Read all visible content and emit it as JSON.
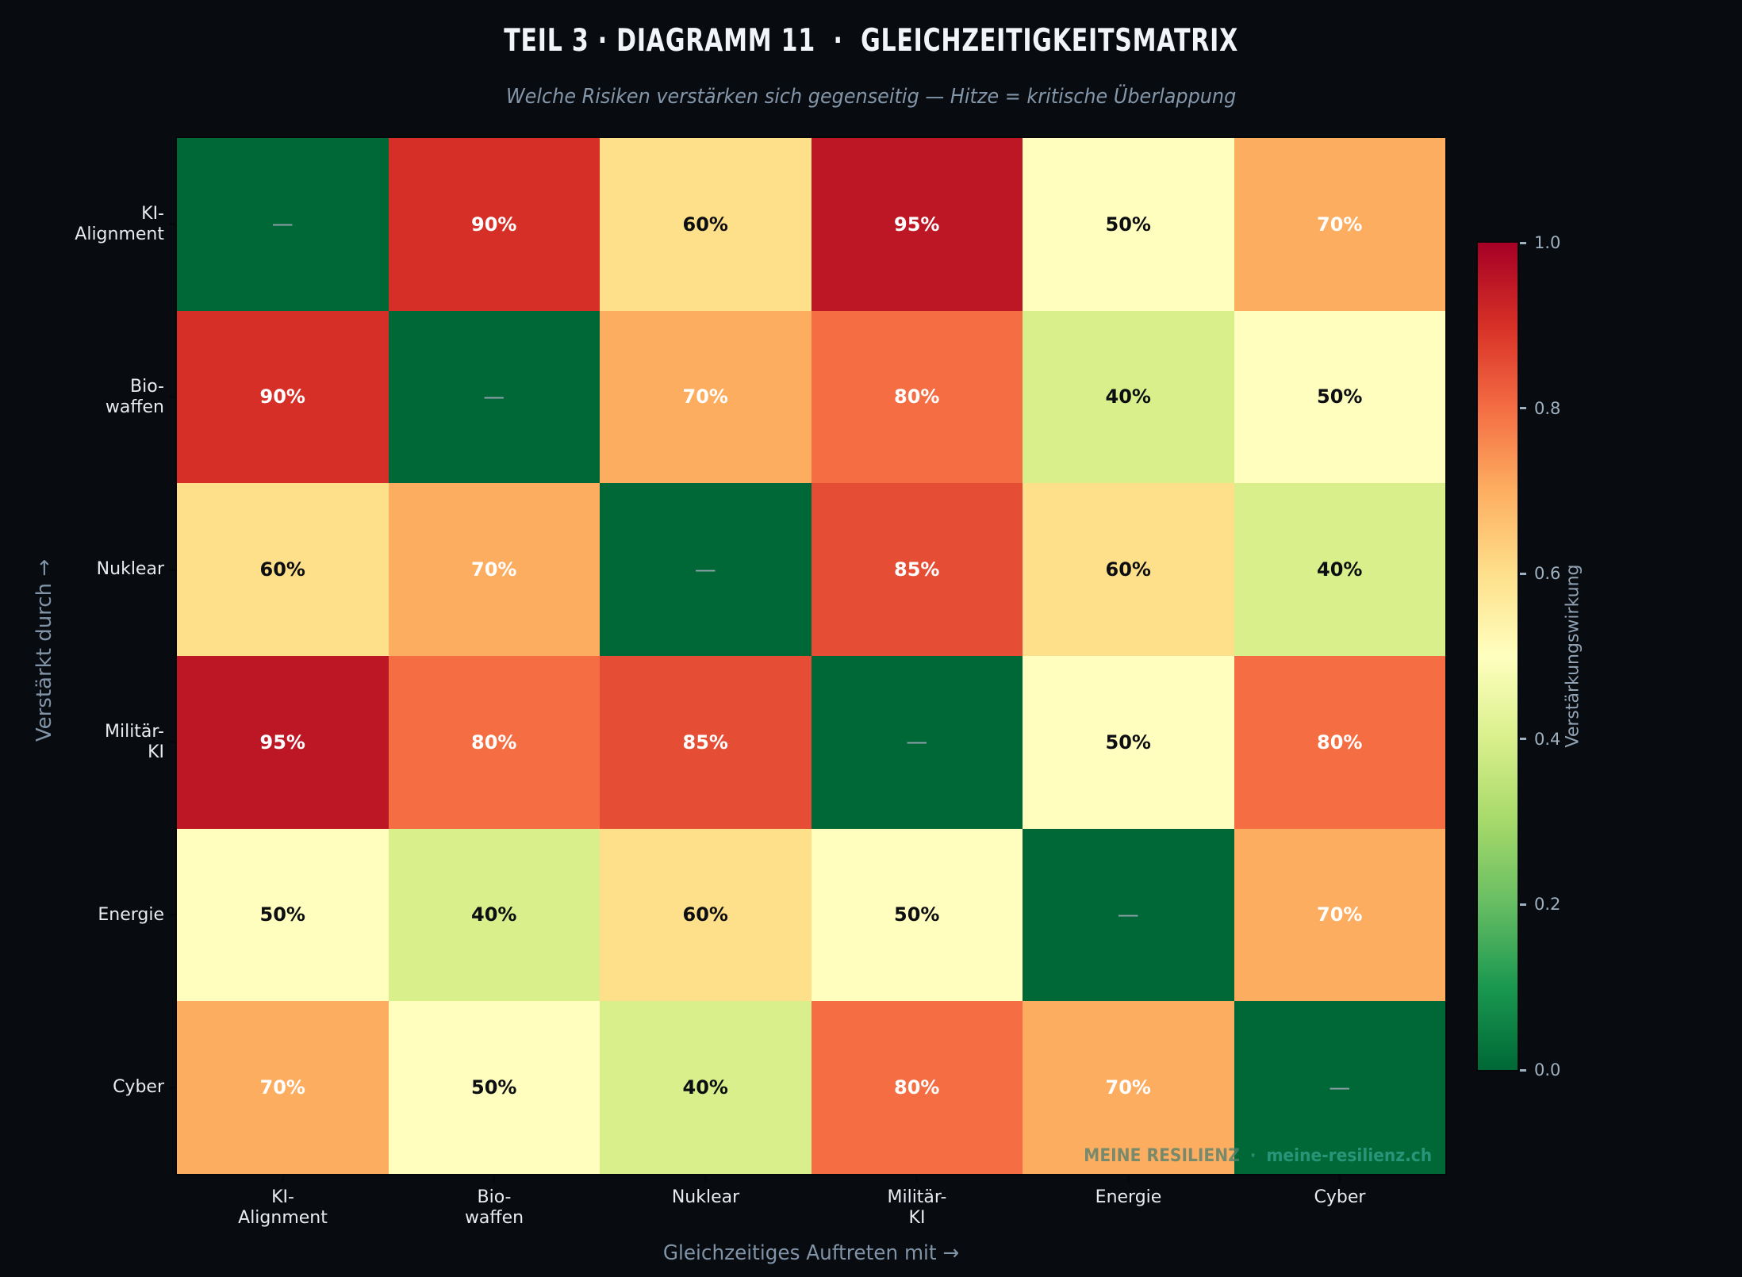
{
  "chart_data": {
    "type": "heatmap",
    "title": "TEIL 3 · DIAGRAMM 11  ·  GLEICHZEITIGKEITSMATRIX",
    "subtitle": "Welche Risiken verstärken sich gegenseitig — Hitze = kritische Überlappung",
    "xlabel": "Gleichzeitiges Auftreten mit →",
    "ylabel": "Verstärkt durch →",
    "categories": [
      "KI-\nAlignment",
      "Bio-\nwaffen",
      "Nuklear",
      "Militär-\nKI",
      "Energie",
      "Cyber"
    ],
    "values_percent": [
      [
        null,
        90,
        60,
        95,
        50,
        70
      ],
      [
        90,
        null,
        70,
        80,
        40,
        50
      ],
      [
        60,
        70,
        null,
        85,
        60,
        40
      ],
      [
        95,
        80,
        85,
        null,
        50,
        80
      ],
      [
        50,
        40,
        60,
        50,
        null,
        70
      ],
      [
        70,
        50,
        40,
        80,
        70,
        null
      ]
    ],
    "diagonal_label": "—",
    "cell_label_format": "{value}%",
    "colormap": "RdYlGn_r",
    "value_range": [
      0,
      1
    ],
    "value_colors": {
      "0": "#006837",
      "40": "#d9ef8b",
      "50": "#fffebe",
      "60": "#fee08b",
      "70": "#fdad60",
      "80": "#f46d43",
      "85": "#e54e35",
      "90": "#d62f27",
      "95": "#bd1726"
    },
    "gradient_stops": [
      "#006837",
      "#1a9850",
      "#66bd63",
      "#a6d96a",
      "#d9ef8b",
      "#ffffbf",
      "#fee08b",
      "#fdae61",
      "#f46d43",
      "#d73027",
      "#a50026"
    ],
    "colorbar": {
      "label": "Verstärkungswirkung",
      "tick_labels": [
        "1.0",
        "0.8",
        "0.6",
        "0.4",
        "0.2",
        "0.0"
      ],
      "tick_values": [
        1.0,
        0.8,
        0.6,
        0.4,
        0.2,
        0.0
      ]
    },
    "legend_position": "right",
    "grid": false
  },
  "watermark": {
    "brand": "MEINE RESILIENZ",
    "separator": "·",
    "site": "meine-resilienz.ch"
  },
  "style": {
    "background": "#080b10",
    "cell_text_light": "#ffffff",
    "cell_text_dark": "#0c0e11",
    "dash_color": "#93a1af",
    "light_text_threshold": 70
  }
}
